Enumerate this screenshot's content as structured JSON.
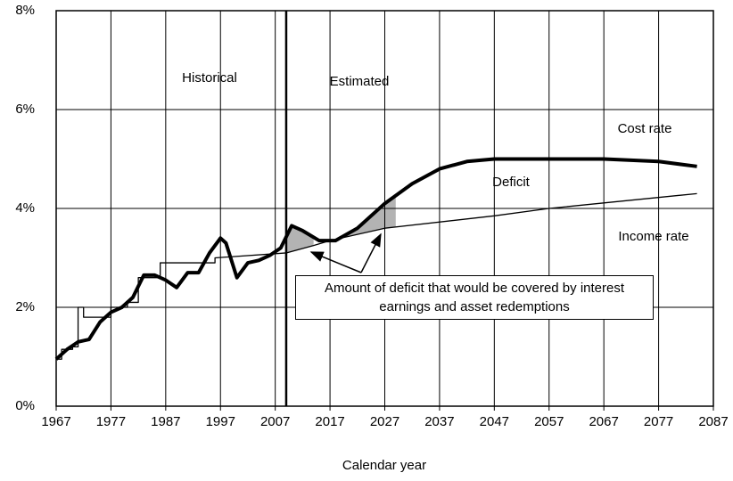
{
  "chart_data": {
    "type": "line",
    "x_label": "Calendar year",
    "xlim": [
      1967,
      2087
    ],
    "xticks": [
      1967,
      1977,
      1987,
      1997,
      2007,
      2017,
      2027,
      2037,
      2047,
      2057,
      2067,
      2077,
      2087
    ],
    "ylim": [
      0,
      8
    ],
    "yticks": [
      {
        "value": 0,
        "label": "0%"
      },
      {
        "value": 2,
        "label": "2%"
      },
      {
        "value": 4,
        "label": "4%"
      },
      {
        "value": 6,
        "label": "6%"
      },
      {
        "value": 8,
        "label": "8%"
      }
    ],
    "grid": true,
    "estimate_start": 2009,
    "shaded_x": [
      [
        2009,
        2014
      ],
      [
        2020,
        2029
      ]
    ],
    "series": [
      {
        "name": "Cost rate",
        "color": "#000000",
        "x": [
          1967,
          1969,
          1971,
          1973,
          1975,
          1977,
          1979,
          1981,
          1983,
          1985,
          1987,
          1989,
          1991,
          1993,
          1995,
          1997,
          1998,
          2000,
          2002,
          2004,
          2006,
          2008,
          2010,
          2012,
          2015,
          2018,
          2022,
          2027,
          2032,
          2037,
          2042,
          2047,
          2057,
          2067,
          2077,
          2084
        ],
        "values": [
          0.95,
          1.15,
          1.3,
          1.35,
          1.7,
          1.9,
          2.0,
          2.2,
          2.65,
          2.65,
          2.55,
          2.4,
          2.7,
          2.7,
          3.1,
          3.4,
          3.3,
          2.6,
          2.9,
          2.95,
          3.05,
          3.2,
          3.65,
          3.55,
          3.35,
          3.35,
          3.6,
          4.1,
          4.5,
          4.8,
          4.95,
          5.0,
          5.0,
          5.0,
          4.95,
          4.85
        ]
      },
      {
        "name": "Income rate",
        "color": "#000000",
        "x": [
          1967,
          1968,
          1968,
          1970,
          1970,
          1971,
          1971,
          1972,
          1972,
          1977,
          1977,
          1980,
          1980,
          1982,
          1982,
          1986,
          1986,
          1996,
          1996,
          2009,
          2014,
          2017,
          2027,
          2047,
          2057,
          2084
        ],
        "values": [
          0.95,
          0.95,
          1.15,
          1.15,
          1.2,
          1.2,
          2.0,
          2.0,
          1.8,
          1.8,
          2.0,
          2.0,
          2.1,
          2.1,
          2.6,
          2.6,
          2.9,
          2.9,
          3.0,
          3.1,
          3.25,
          3.35,
          3.6,
          3.85,
          4.0,
          4.3
        ]
      }
    ],
    "annotations": [
      "Historical",
      "Estimated",
      "Deficit",
      "Amount of deficit that would be covered by interest earnings and asset redemptions"
    ]
  }
}
